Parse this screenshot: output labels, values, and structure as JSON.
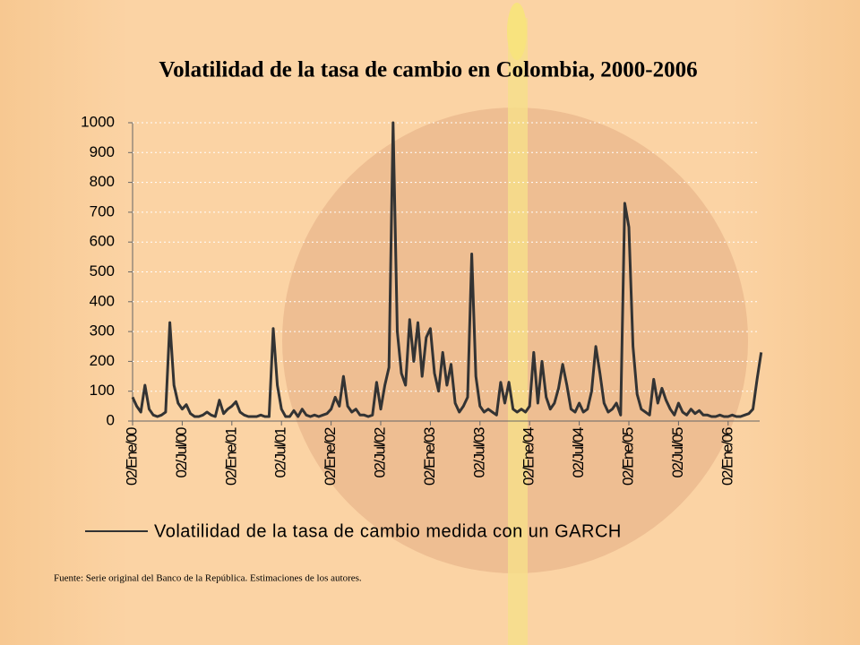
{
  "chart_data": {
    "type": "line",
    "title": "Volatilidad de la tasa de cambio en Colombia, 2000-2006",
    "categories": [
      "02/Ene/00",
      null,
      null,
      null,
      null,
      null,
      null,
      null,
      null,
      null,
      null,
      null,
      "02/Jul/00",
      null,
      null,
      null,
      null,
      null,
      null,
      null,
      null,
      null,
      null,
      null,
      "02/Ene/01",
      null,
      null,
      null,
      null,
      null,
      null,
      null,
      null,
      null,
      null,
      null,
      "02/Jul/01",
      null,
      null,
      null,
      null,
      null,
      null,
      null,
      null,
      null,
      null,
      null,
      "02/Ene/02",
      null,
      null,
      null,
      null,
      null,
      null,
      null,
      null,
      null,
      null,
      null,
      "02/Jul/02",
      null,
      null,
      null,
      null,
      null,
      null,
      null,
      null,
      null,
      null,
      null,
      "02/Ene/03",
      null,
      null,
      null,
      null,
      null,
      null,
      null,
      null,
      null,
      null,
      null,
      "02/Jul/03",
      null,
      null,
      null,
      null,
      null,
      null,
      null,
      null,
      null,
      null,
      null,
      "02/Ene/04",
      null,
      null,
      null,
      null,
      null,
      null,
      null,
      null,
      null,
      null,
      null,
      "02/Jul/04",
      null,
      null,
      null,
      null,
      null,
      null,
      null,
      null,
      null,
      null,
      null,
      "02/Ene/05",
      null,
      null,
      null,
      null,
      null,
      null,
      null,
      null,
      null,
      null,
      null,
      "02/Jul/05",
      null,
      null,
      null,
      null,
      null,
      null,
      null,
      null,
      null,
      null,
      null,
      "02/Ene/06",
      null,
      null,
      null,
      null,
      null,
      null,
      null,
      null
    ],
    "series": [
      {
        "name": "Volatilidad de la tasa de cambio medida con un GARCH",
        "color": "#333333",
        "values": [
          80,
          50,
          30,
          120,
          40,
          20,
          15,
          20,
          30,
          330,
          120,
          60,
          40,
          55,
          25,
          15,
          15,
          20,
          30,
          20,
          15,
          70,
          25,
          40,
          50,
          65,
          30,
          20,
          15,
          15,
          15,
          20,
          15,
          15,
          310,
          120,
          40,
          15,
          15,
          35,
          15,
          40,
          20,
          15,
          20,
          15,
          20,
          25,
          40,
          80,
          50,
          150,
          50,
          30,
          40,
          20,
          20,
          15,
          20,
          130,
          40,
          120,
          180,
          1000,
          300,
          160,
          120,
          340,
          200,
          330,
          150,
          280,
          310,
          160,
          100,
          230,
          120,
          190,
          60,
          30,
          50,
          80,
          560,
          150,
          50,
          30,
          40,
          30,
          20,
          130,
          60,
          130,
          40,
          30,
          40,
          30,
          50,
          230,
          60,
          200,
          80,
          40,
          60,
          110,
          190,
          120,
          40,
          30,
          60,
          30,
          40,
          100,
          250,
          160,
          60,
          30,
          40,
          60,
          20,
          730,
          650,
          250,
          90,
          40,
          30,
          20,
          140,
          60,
          110,
          70,
          40,
          20,
          60,
          30,
          20,
          40,
          25,
          35,
          20,
          20,
          15,
          15,
          20,
          15,
          15,
          20,
          15,
          15,
          20,
          25,
          40,
          140,
          230
        ]
      }
    ],
    "ylim": [
      0,
      1000
    ],
    "yticks": [
      0,
      100,
      200,
      300,
      400,
      500,
      600,
      700,
      800,
      900,
      1000
    ],
    "grid": true,
    "source": "Fuente: Serie original del Banco de la República. Estimaciones de los autores."
  }
}
